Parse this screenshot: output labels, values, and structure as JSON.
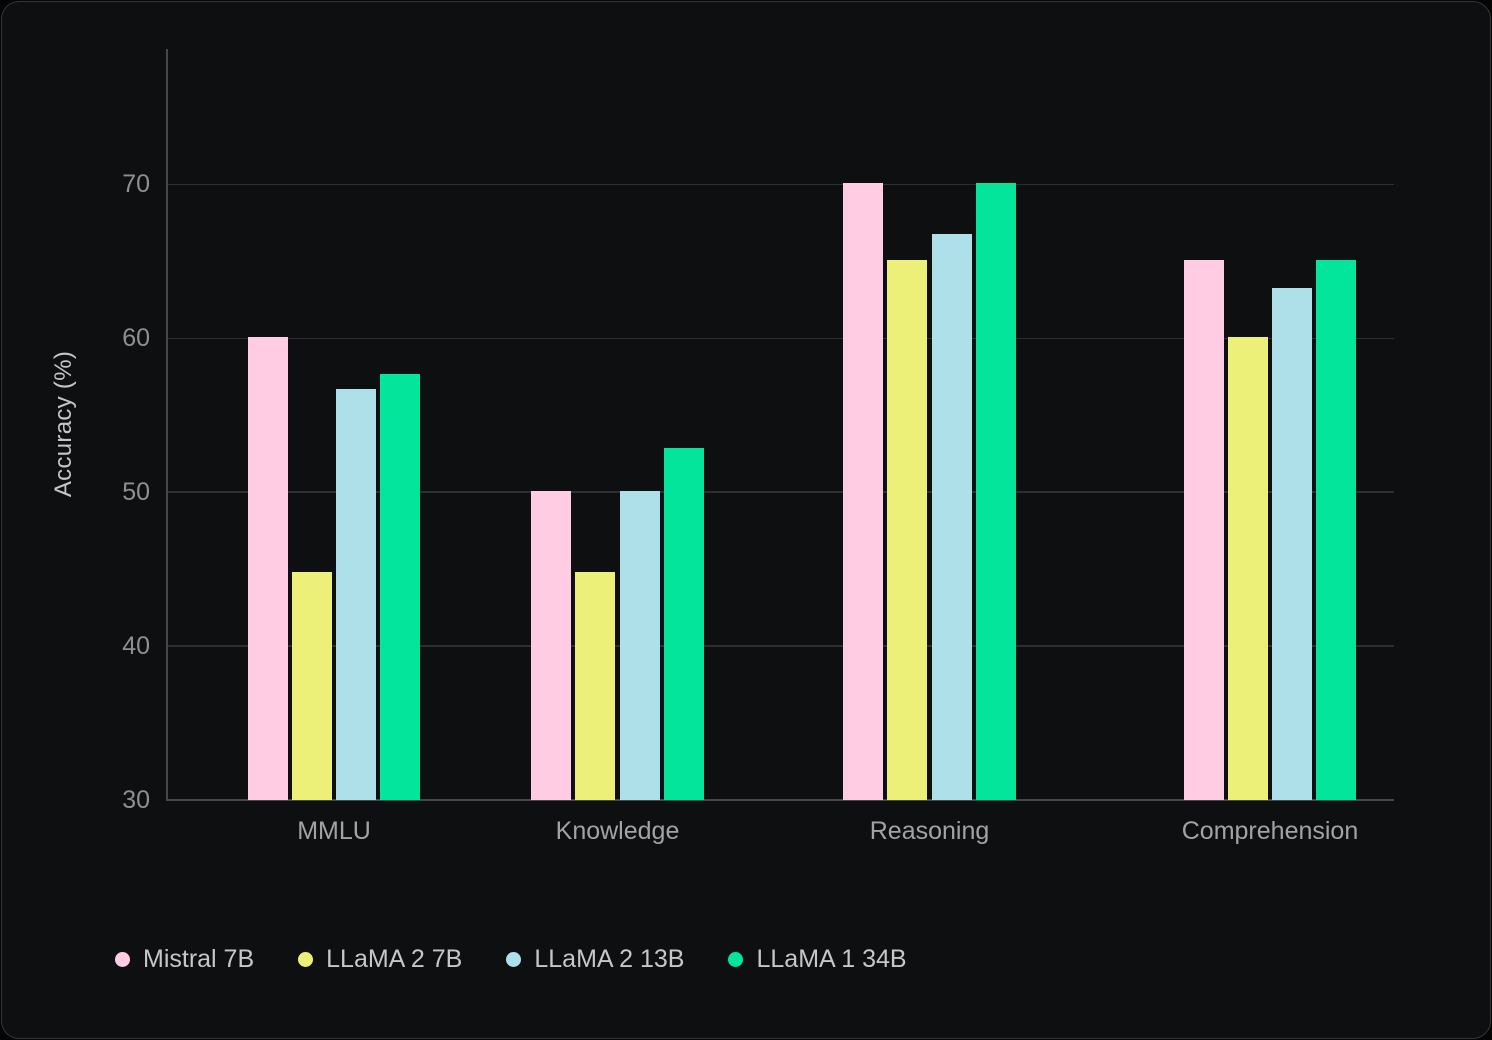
{
  "panel": {
    "background": "#0e0f10",
    "border_color": "#333438"
  },
  "colors": {
    "gridline": "#2e2f33",
    "axis_line": "#47484d",
    "tick_text": "#8e8f94",
    "category_text": "#a1a3a8",
    "legend_text": "#c6c7cb",
    "axis_title_text": "#c5c6ca"
  },
  "chart_data": {
    "type": "bar",
    "title": "",
    "xlabel": "",
    "ylabel": "Accuracy (%)",
    "categories": [
      "MMLU",
      "Knowledge",
      "Reasoning",
      "Comprehension"
    ],
    "series": [
      {
        "name": "Mistral 7B",
        "color": "#ffcce3",
        "values": [
          60.1,
          50.1,
          70.1,
          65.1
        ]
      },
      {
        "name": "LLaMA 2 7B",
        "color": "#edf078",
        "values": [
          44.8,
          44.8,
          65.1,
          60.1
        ]
      },
      {
        "name": "LLaMA 2 13B",
        "color": "#ade0e9",
        "values": [
          56.7,
          50.1,
          66.8,
          63.3
        ]
      },
      {
        "name": "LLaMA 1 34B",
        "color": "#02e59a",
        "values": [
          57.7,
          52.9,
          70.1,
          65.1
        ]
      }
    ],
    "y_ticks": [
      30,
      40,
      50,
      60,
      70
    ],
    "ylim": [
      30,
      78.8
    ],
    "grid": "horizontal",
    "legend_position": "bottom-left"
  }
}
